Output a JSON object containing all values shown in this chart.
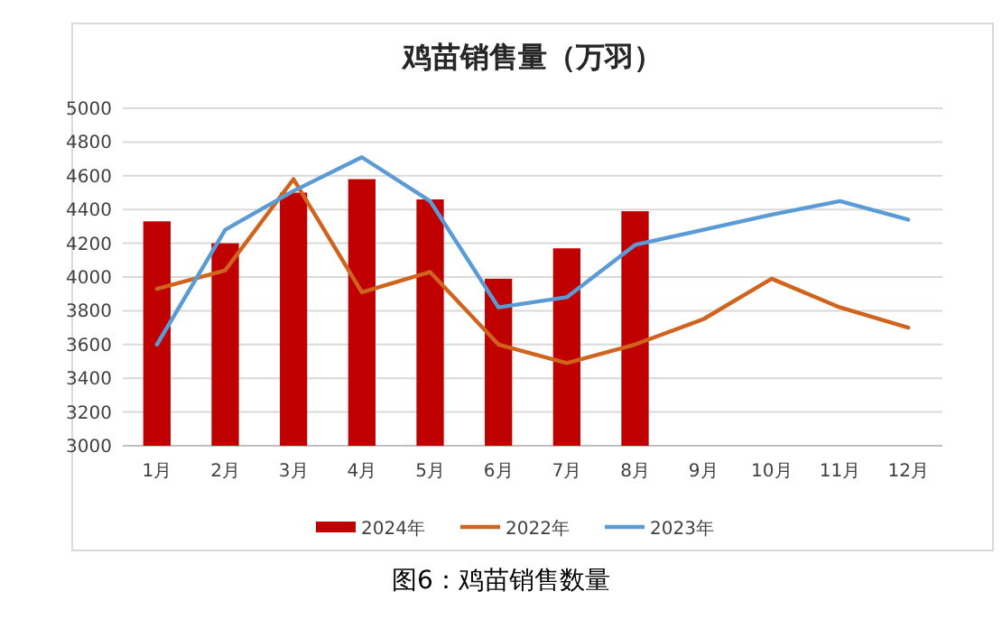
{
  "chart_data": {
    "type": "bar",
    "title": "鸡苗销售量（万羽）",
    "categories": [
      "1月",
      "2月",
      "3月",
      "4月",
      "5月",
      "6月",
      "7月",
      "8月",
      "9月",
      "10月",
      "11月",
      "12月"
    ],
    "series": [
      {
        "name": "2024年",
        "color": "#c00000",
        "values": [
          4330,
          4200,
          4500,
          4580,
          4460,
          3990,
          4170,
          4390,
          null,
          null,
          null,
          null
        ]
      },
      {
        "name": "2022年",
        "type": "line",
        "color": "#d0641e",
        "values": [
          3930,
          4040,
          4580,
          3910,
          4030,
          3600,
          3490,
          3600,
          3750,
          3990,
          3820,
          3700
        ]
      },
      {
        "name": "2023年",
        "type": "line",
        "color": "#5b9bd5",
        "values": [
          3600,
          4280,
          4510,
          4710,
          4450,
          3820,
          3880,
          4190,
          4280,
          4370,
          4450,
          4340
        ]
      }
    ],
    "ylim": [
      3000,
      5000
    ],
    "yticks": [
      3000,
      3200,
      3400,
      3600,
      3800,
      4000,
      4200,
      4400,
      4600,
      4800,
      5000
    ],
    "grid": "y",
    "legend": "bottom",
    "marker": "none",
    "line_style": "solid",
    "annotations": [
      "图6：鸡苗销售数量"
    ]
  }
}
